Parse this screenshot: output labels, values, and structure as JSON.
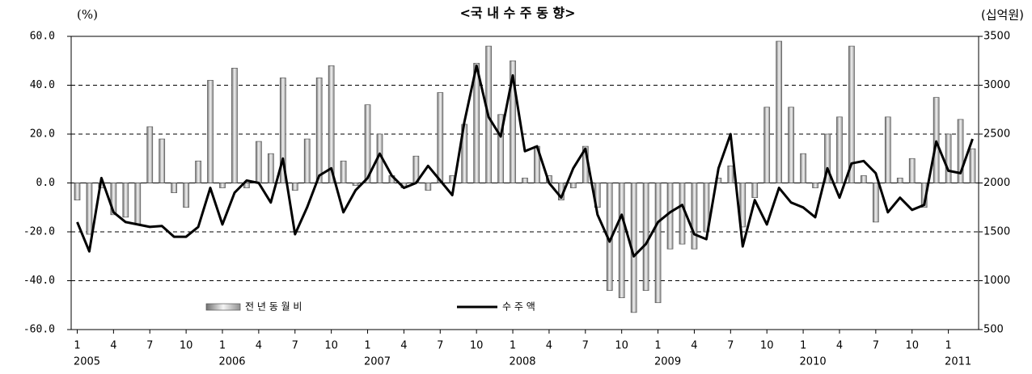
{
  "chart_data": {
    "type": "bar-line",
    "title": "<국 내 수 주  동 향>",
    "y_label": "(%)",
    "y2_label": "(십억원)",
    "categories": [
      "1",
      null,
      null,
      "4",
      null,
      null,
      "7",
      null,
      null,
      "10",
      null,
      null,
      "1",
      null,
      null,
      "4",
      null,
      null,
      "7",
      null,
      null,
      "10",
      null,
      null,
      "1",
      null,
      null,
      "4",
      null,
      null,
      "7",
      null,
      null,
      "10",
      null,
      null,
      "1",
      null,
      null,
      "4",
      null,
      null,
      "7",
      null,
      null,
      "10",
      null,
      null,
      "1",
      null,
      null,
      "4",
      null,
      null,
      "7",
      null,
      null,
      "10",
      null,
      null,
      "1",
      null,
      null,
      "4",
      null,
      null,
      "7",
      null,
      null,
      "10",
      null,
      null,
      "1",
      null,
      null
    ],
    "years": [
      "2005",
      "2006",
      "2007",
      "2008",
      "2009",
      "2010",
      "2011"
    ],
    "series": [
      {
        "name": "전 년 동 월 비",
        "type": "bar",
        "color": "#b0b0b0",
        "values": [
          -7,
          -21,
          -2,
          -13,
          -14,
          -17,
          23,
          18,
          -4,
          -10,
          9,
          42,
          -2,
          47,
          -2,
          17,
          12,
          43,
          -3,
          18,
          43,
          48,
          9,
          -1,
          32,
          20,
          3,
          -2,
          11,
          -3,
          37,
          3,
          24,
          49,
          56,
          28,
          50,
          2,
          15,
          3,
          -7,
          -2,
          15,
          -10,
          -44,
          -47,
          -53,
          -44,
          -49,
          -27,
          -25,
          -27,
          -20,
          2,
          7,
          -18,
          -6,
          31,
          58,
          31,
          12,
          -2,
          20,
          27,
          56,
          3,
          -16,
          27,
          2,
          10,
          -10,
          35,
          20,
          26,
          14
        ]
      },
      {
        "name": "수 주 액",
        "type": "line",
        "axis": "y2",
        "color": "#000000",
        "values": [
          1600,
          1300,
          2050,
          1700,
          1600,
          1575,
          1550,
          1560,
          1450,
          1450,
          1550,
          1950,
          1575,
          1900,
          2025,
          2000,
          1800,
          2250,
          1475,
          1750,
          2075,
          2150,
          1700,
          1925,
          2050,
          2300,
          2075,
          1950,
          2000,
          2175,
          2025,
          1875,
          2625,
          3200,
          2675,
          2475,
          3100,
          2325,
          2375,
          2000,
          1850,
          2150,
          2350,
          1675,
          1400,
          1675,
          1250,
          1375,
          1600,
          1700,
          1775,
          1475,
          1425,
          2150,
          2500,
          1350,
          1825,
          1575,
          1950,
          1800,
          1750,
          1650,
          2150,
          1850,
          2200,
          2225,
          2100,
          1700,
          1850,
          1725,
          1775,
          2425,
          2125,
          2100,
          2450
        ]
      }
    ],
    "ylim": [
      -60,
      60
    ],
    "yticks": [
      {
        "value": -60,
        "label": "-60.0"
      },
      {
        "value": -40,
        "label": "-40.0"
      },
      {
        "value": -20,
        "label": "-20.0"
      },
      {
        "value": 0,
        "label": "0.0"
      },
      {
        "value": 20,
        "label": "20.0"
      },
      {
        "value": 40,
        "label": "40.0"
      },
      {
        "value": 60,
        "label": "60.0"
      }
    ],
    "y2lim": [
      500,
      3500
    ],
    "y2ticks": [
      500,
      1000,
      1500,
      2000,
      2500,
      3000,
      3500
    ],
    "grid": true
  }
}
